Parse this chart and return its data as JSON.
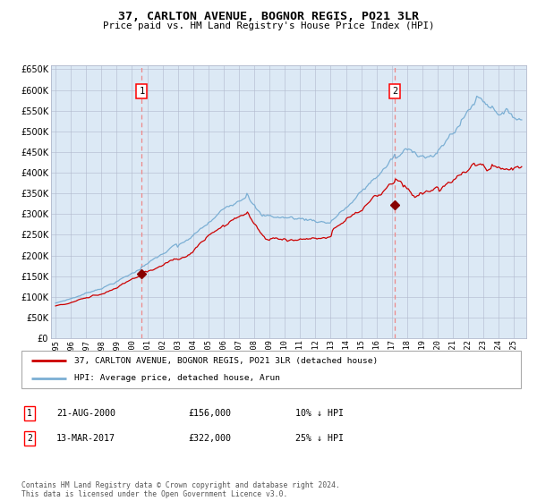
{
  "title": "37, CARLTON AVENUE, BOGNOR REGIS, PO21 3LR",
  "subtitle": "Price paid vs. HM Land Registry's House Price Index (HPI)",
  "bg_color": "#dce9f5",
  "hpi_color": "#7bafd4",
  "price_color": "#cc0000",
  "marker_color": "#880000",
  "vline_color": "#ee8888",
  "annotation1": {
    "label": "1",
    "date_x": 2000.64,
    "price": 156000
  },
  "annotation2": {
    "label": "2",
    "date_x": 2017.19,
    "price": 322000
  },
  "legend_line1": "37, CARLTON AVENUE, BOGNOR REGIS, PO21 3LR (detached house)",
  "legend_line2": "HPI: Average price, detached house, Arun",
  "table_row1": [
    "1",
    "21-AUG-2000",
    "£156,000",
    "10% ↓ HPI"
  ],
  "table_row2": [
    "2",
    "13-MAR-2017",
    "£322,000",
    "25% ↓ HPI"
  ],
  "footer": "Contains HM Land Registry data © Crown copyright and database right 2024.\nThis data is licensed under the Open Government Licence v3.0.",
  "ylim": [
    0,
    660000
  ],
  "yticks": [
    0,
    50000,
    100000,
    150000,
    200000,
    250000,
    300000,
    350000,
    400000,
    450000,
    500000,
    550000,
    600000,
    650000
  ],
  "xlim_start": 1994.7,
  "xlim_end": 2025.8,
  "xticks": [
    1995,
    1996,
    1997,
    1998,
    1999,
    2000,
    2001,
    2002,
    2003,
    2004,
    2005,
    2006,
    2007,
    2008,
    2009,
    2010,
    2011,
    2012,
    2013,
    2014,
    2015,
    2016,
    2017,
    2018,
    2019,
    2020,
    2021,
    2022,
    2023,
    2024,
    2025
  ]
}
